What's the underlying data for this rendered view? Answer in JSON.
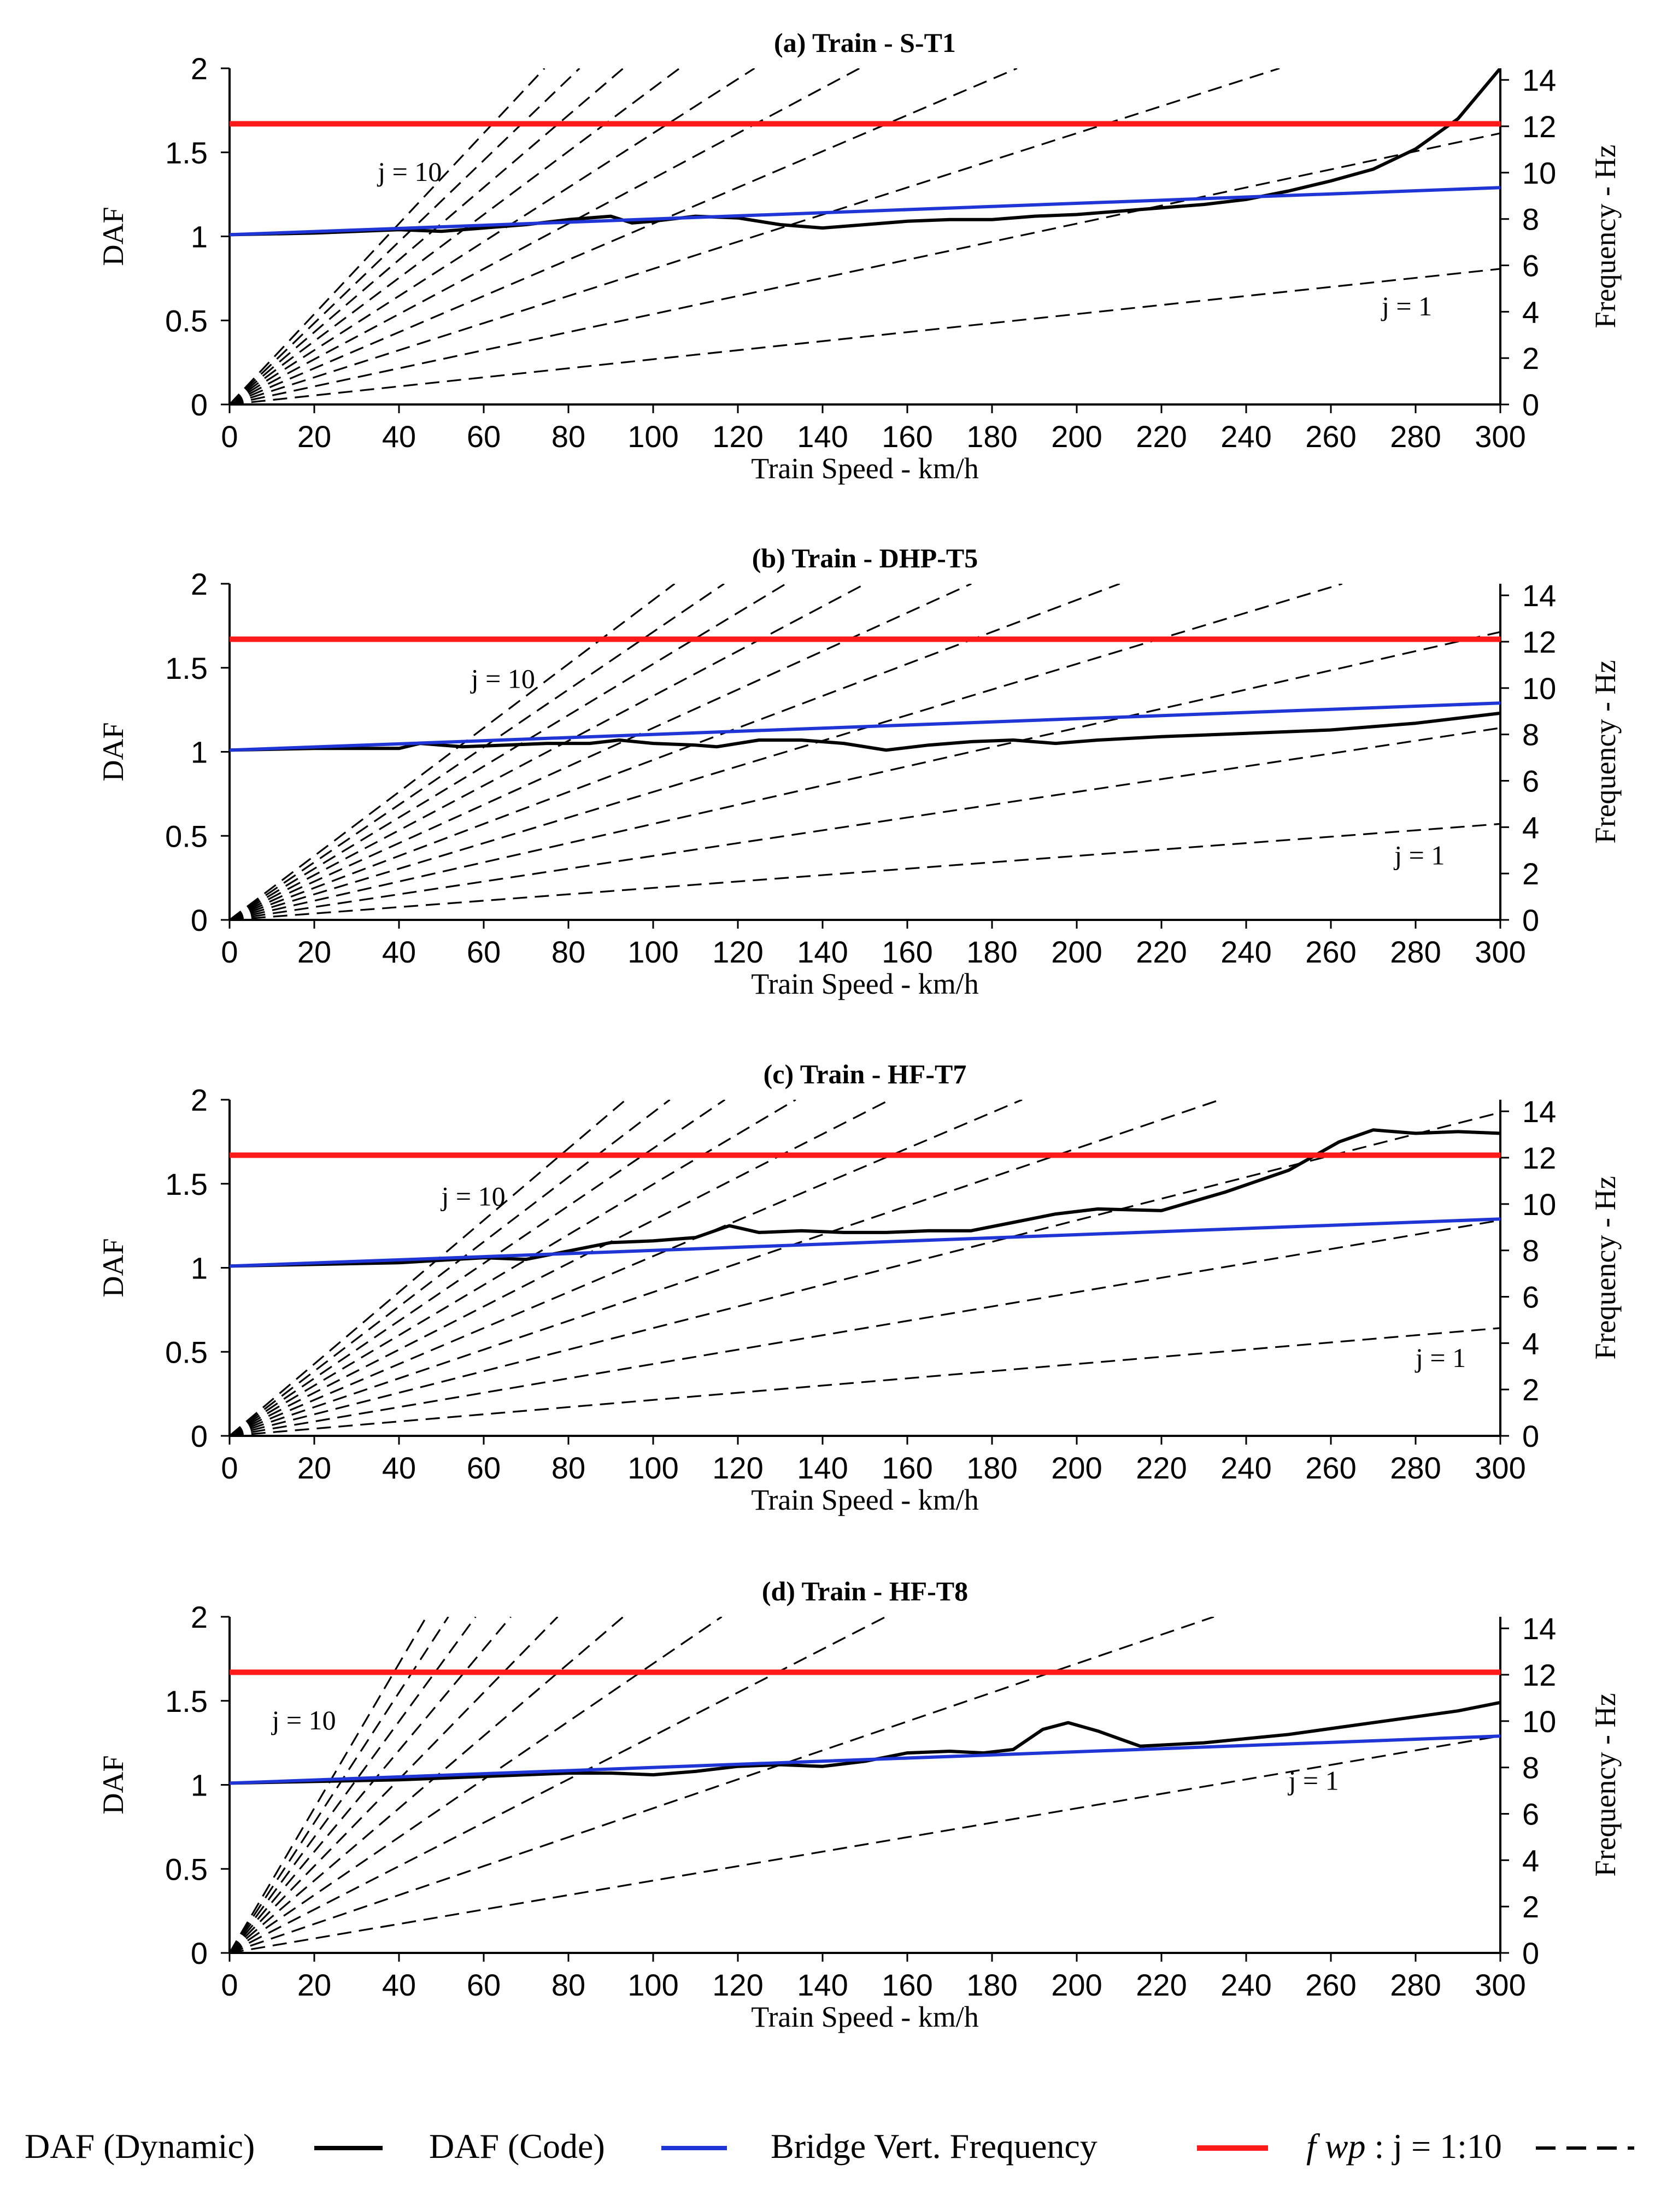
{
  "chart_data": [
    {
      "type": "line",
      "title": "(a) Train - S-T1",
      "xlabel": "Train Speed - km/h",
      "ylabel": "DAF",
      "y2label": "Frequency - Hz",
      "xlim": [
        0,
        300
      ],
      "ylim": [
        0,
        2
      ],
      "y2lim": [
        0,
        14.5
      ],
      "xticks": [
        "0",
        "20",
        "40",
        "60",
        "80",
        "100",
        "120",
        "140",
        "160",
        "180",
        "200",
        "220",
        "240",
        "260",
        "280",
        "300"
      ],
      "yticks": [
        "0",
        "0.5",
        "1",
        "1.5",
        "2"
      ],
      "y2ticks": [
        "0",
        "2",
        "4",
        "6",
        "8",
        "10",
        "12",
        "14"
      ],
      "annotations": [
        {
          "text": "j = 10",
          "x": 35,
          "y": 1.33
        },
        {
          "text": "j = 1",
          "x": 272,
          "y": 0.53
        }
      ],
      "bridge_frequency_hz": 12.1,
      "fwp_slope_hz_per_kmh": 0.0195,
      "series": [
        {
          "name": "DAF (Dynamic)",
          "color": "#000000",
          "axis": "left",
          "x": [
            0,
            20,
            40,
            50,
            60,
            70,
            80,
            90,
            95,
            100,
            110,
            120,
            130,
            140,
            150,
            160,
            170,
            180,
            190,
            200,
            210,
            220,
            230,
            240,
            250,
            260,
            270,
            280,
            290,
            300
          ],
          "y": [
            1.01,
            1.02,
            1.04,
            1.03,
            1.05,
            1.07,
            1.1,
            1.12,
            1.08,
            1.09,
            1.12,
            1.11,
            1.07,
            1.05,
            1.07,
            1.09,
            1.1,
            1.1,
            1.12,
            1.13,
            1.15,
            1.17,
            1.19,
            1.22,
            1.27,
            1.33,
            1.4,
            1.52,
            1.7,
            2.0
          ]
        },
        {
          "name": "DAF (Code)",
          "color": "#1f35d6",
          "axis": "left",
          "x": [
            0,
            300
          ],
          "y": [
            1.01,
            1.29
          ]
        },
        {
          "name": "Bridge Vert. Frequency",
          "color": "#ff1a1a",
          "axis": "left",
          "x": [
            0,
            300
          ],
          "y": [
            1.67,
            1.67
          ]
        }
      ]
    },
    {
      "type": "line",
      "title": "(b) Train - DHP-T5",
      "xlabel": "Train Speed - km/h",
      "ylabel": "DAF",
      "y2label": "Frequency - Hz",
      "xlim": [
        0,
        300
      ],
      "ylim": [
        0,
        2
      ],
      "y2lim": [
        0,
        14.5
      ],
      "xticks": [
        "0",
        "20",
        "40",
        "60",
        "80",
        "100",
        "120",
        "140",
        "160",
        "180",
        "200",
        "220",
        "240",
        "260",
        "280",
        "300"
      ],
      "yticks": [
        "0",
        "0.5",
        "1",
        "1.5",
        "2"
      ],
      "y2ticks": [
        "0",
        "2",
        "4",
        "6",
        "8",
        "10",
        "12",
        "14"
      ],
      "annotations": [
        {
          "text": "j = 10",
          "x": 57,
          "y": 1.38
        },
        {
          "text": "j = 1",
          "x": 275,
          "y": 0.33
        }
      ],
      "bridge_frequency_hz": 12.1,
      "fwp_slope_hz_per_kmh": 0.0138,
      "series": [
        {
          "name": "DAF (Dynamic)",
          "color": "#000000",
          "axis": "left",
          "x": [
            0,
            20,
            40,
            45,
            55,
            65,
            75,
            85,
            92,
            100,
            110,
            115,
            125,
            135,
            145,
            155,
            165,
            175,
            185,
            195,
            205,
            220,
            240,
            260,
            280,
            300
          ],
          "y": [
            1.01,
            1.02,
            1.02,
            1.05,
            1.03,
            1.04,
            1.05,
            1.05,
            1.07,
            1.05,
            1.04,
            1.03,
            1.07,
            1.07,
            1.05,
            1.01,
            1.04,
            1.06,
            1.07,
            1.05,
            1.07,
            1.09,
            1.11,
            1.13,
            1.17,
            1.23
          ]
        },
        {
          "name": "DAF (Code)",
          "color": "#1f35d6",
          "axis": "left",
          "x": [
            0,
            300
          ],
          "y": [
            1.01,
            1.29
          ]
        },
        {
          "name": "Bridge Vert. Frequency",
          "color": "#ff1a1a",
          "axis": "left",
          "x": [
            0,
            300
          ],
          "y": [
            1.67,
            1.67
          ]
        }
      ]
    },
    {
      "type": "line",
      "title": "(c) Train - HF-T7",
      "xlabel": "Train Speed - km/h",
      "ylabel": "DAF",
      "y2label": "Frequency - Hz",
      "xlim": [
        0,
        300
      ],
      "ylim": [
        0,
        2
      ],
      "y2lim": [
        0,
        14.5
      ],
      "xticks": [
        "0",
        "20",
        "40",
        "60",
        "80",
        "100",
        "120",
        "140",
        "160",
        "180",
        "200",
        "220",
        "240",
        "260",
        "280",
        "300"
      ],
      "yticks": [
        "0",
        "0.5",
        "1",
        "1.5",
        "2"
      ],
      "y2ticks": [
        "0",
        "2",
        "4",
        "6",
        "8",
        "10",
        "12",
        "14"
      ],
      "annotations": [
        {
          "text": "j = 10",
          "x": 50,
          "y": 1.37
        },
        {
          "text": "j = 1",
          "x": 280,
          "y": 0.41
        }
      ],
      "bridge_frequency_hz": 12.1,
      "fwp_slope_hz_per_kmh": 0.0155,
      "series": [
        {
          "name": "DAF (Dynamic)",
          "color": "#000000",
          "axis": "left",
          "x": [
            0,
            40,
            60,
            70,
            80,
            90,
            100,
            110,
            118,
            125,
            135,
            145,
            155,
            165,
            175,
            185,
            195,
            205,
            220,
            235,
            250,
            262,
            270,
            280,
            290,
            300
          ],
          "y": [
            1.01,
            1.03,
            1.06,
            1.05,
            1.1,
            1.15,
            1.16,
            1.18,
            1.25,
            1.21,
            1.22,
            1.21,
            1.21,
            1.22,
            1.22,
            1.27,
            1.32,
            1.35,
            1.34,
            1.45,
            1.58,
            1.75,
            1.82,
            1.8,
            1.81,
            1.8
          ]
        },
        {
          "name": "DAF (Code)",
          "color": "#1f35d6",
          "axis": "left",
          "x": [
            0,
            300
          ],
          "y": [
            1.01,
            1.29
          ]
        },
        {
          "name": "Bridge Vert. Frequency",
          "color": "#ff1a1a",
          "axis": "left",
          "x": [
            0,
            300
          ],
          "y": [
            1.67,
            1.67
          ]
        }
      ]
    },
    {
      "type": "line",
      "title": "(d) Train - HF-T8",
      "xlabel": "Train Speed - km/h",
      "ylabel": "DAF",
      "y2label": "Frequency - Hz",
      "xlim": [
        0,
        300
      ],
      "ylim": [
        0,
        2
      ],
      "y2lim": [
        0,
        14.5
      ],
      "xticks": [
        "0",
        "20",
        "40",
        "60",
        "80",
        "100",
        "120",
        "140",
        "160",
        "180",
        "200",
        "220",
        "240",
        "260",
        "280",
        "300"
      ],
      "yticks": [
        "0",
        "0.5",
        "1",
        "1.5",
        "2"
      ],
      "y2ticks": [
        "0",
        "2",
        "4",
        "6",
        "8",
        "10",
        "12",
        "14"
      ],
      "annotations": [
        {
          "text": "j = 10",
          "x": 10,
          "y": 1.33
        },
        {
          "text": "j = 1",
          "x": 250,
          "y": 0.97
        }
      ],
      "bridge_frequency_hz": 12.1,
      "fwp_slope_hz_per_kmh": 0.0312,
      "series": [
        {
          "name": "DAF (Dynamic)",
          "color": "#000000",
          "axis": "left",
          "x": [
            0,
            40,
            60,
            80,
            90,
            100,
            110,
            120,
            130,
            140,
            150,
            160,
            170,
            178,
            185,
            192,
            198,
            205,
            215,
            230,
            250,
            270,
            290,
            300
          ],
          "y": [
            1.01,
            1.03,
            1.05,
            1.07,
            1.07,
            1.06,
            1.08,
            1.11,
            1.12,
            1.11,
            1.14,
            1.19,
            1.2,
            1.19,
            1.21,
            1.33,
            1.37,
            1.32,
            1.23,
            1.25,
            1.3,
            1.37,
            1.44,
            1.49
          ]
        },
        {
          "name": "DAF (Code)",
          "color": "#1f35d6",
          "axis": "left",
          "x": [
            0,
            300
          ],
          "y": [
            1.01,
            1.29
          ]
        },
        {
          "name": "Bridge Vert. Frequency",
          "color": "#ff1a1a",
          "axis": "left",
          "x": [
            0,
            300
          ],
          "y": [
            1.67,
            1.67
          ]
        }
      ]
    }
  ],
  "legend": [
    {
      "label": "DAF (Dynamic)",
      "color": "#000000",
      "style": "solid"
    },
    {
      "label": "DAF (Code)",
      "color": "#1f35d6",
      "style": "solid"
    },
    {
      "label": "Bridge Vert. Frequency",
      "color": "#ff1a1a",
      "style": "solid"
    },
    {
      "label_italic": "f wp",
      "label": " : j = 1:10",
      "color": "#000000",
      "style": "dashed"
    }
  ]
}
